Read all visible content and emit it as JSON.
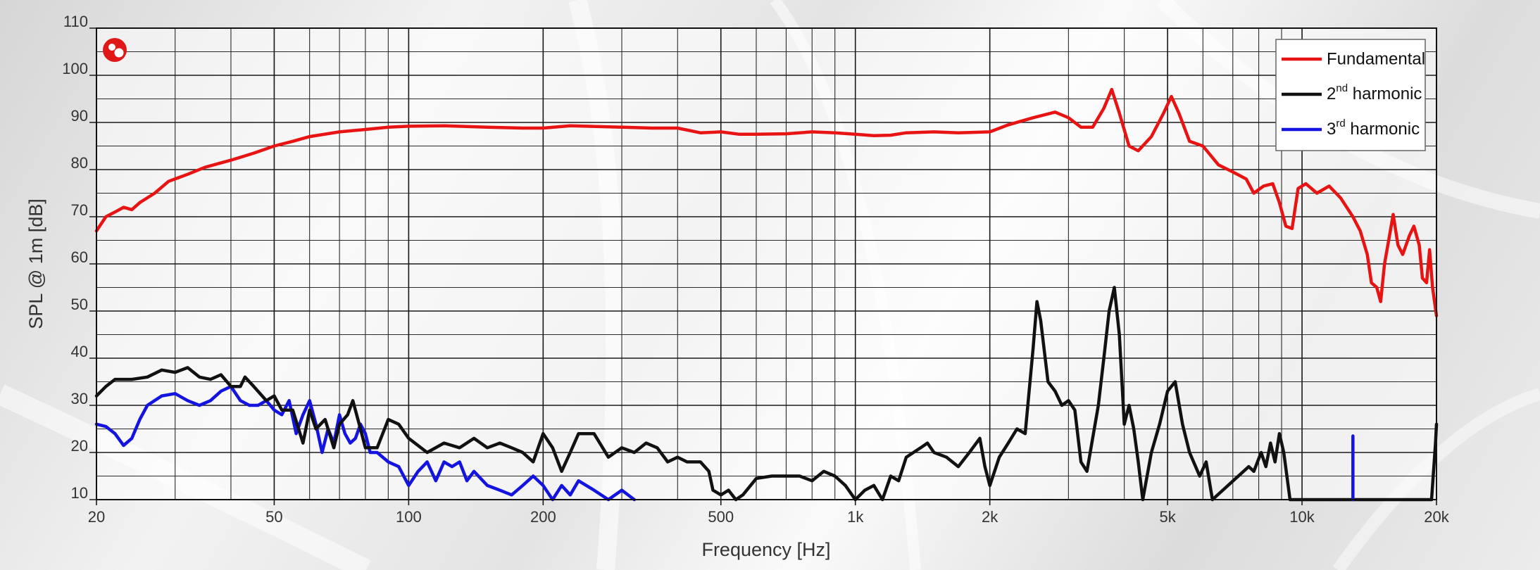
{
  "chart_data": {
    "type": "line",
    "title": "",
    "xlabel": "Frequency [Hz]",
    "ylabel": "SPL @ 1m [dB]",
    "xscale": "log",
    "xlim": [
      20,
      20000
    ],
    "ylim": [
      10,
      110
    ],
    "grid": true,
    "legend_position": "top-right",
    "x_ticks": [
      {
        "value": 20,
        "label": "20"
      },
      {
        "value": 50,
        "label": "50"
      },
      {
        "value": 100,
        "label": "100"
      },
      {
        "value": 200,
        "label": "200"
      },
      {
        "value": 500,
        "label": "500"
      },
      {
        "value": 1000,
        "label": "1k"
      },
      {
        "value": 2000,
        "label": "2k"
      },
      {
        "value": 5000,
        "label": "5k"
      },
      {
        "value": 10000,
        "label": "10k"
      },
      {
        "value": 20000,
        "label": "20k"
      }
    ],
    "y_ticks": [
      10,
      20,
      30,
      40,
      50,
      60,
      70,
      80,
      90,
      100,
      110
    ],
    "series": [
      {
        "key": "fundamental",
        "name": "Fundamental",
        "color": "#e81414",
        "points": [
          [
            20,
            67
          ],
          [
            21,
            70
          ],
          [
            22,
            71
          ],
          [
            23,
            72
          ],
          [
            24,
            71.5
          ],
          [
            25,
            73
          ],
          [
            27,
            75
          ],
          [
            29,
            77.5
          ],
          [
            32,
            79
          ],
          [
            35,
            80.5
          ],
          [
            40,
            82
          ],
          [
            45,
            83.5
          ],
          [
            50,
            85
          ],
          [
            55,
            86
          ],
          [
            60,
            87
          ],
          [
            70,
            88
          ],
          [
            80,
            88.5
          ],
          [
            90,
            89
          ],
          [
            100,
            89.2
          ],
          [
            120,
            89.3
          ],
          [
            150,
            89
          ],
          [
            180,
            88.8
          ],
          [
            200,
            88.8
          ],
          [
            230,
            89.3
          ],
          [
            250,
            89.2
          ],
          [
            300,
            89
          ],
          [
            350,
            88.8
          ],
          [
            400,
            88.8
          ],
          [
            450,
            87.8
          ],
          [
            500,
            88
          ],
          [
            550,
            87.5
          ],
          [
            600,
            87.5
          ],
          [
            700,
            87.6
          ],
          [
            800,
            88
          ],
          [
            900,
            87.8
          ],
          [
            1000,
            87.5
          ],
          [
            1100,
            87.2
          ],
          [
            1200,
            87.3
          ],
          [
            1300,
            87.8
          ],
          [
            1500,
            88
          ],
          [
            1700,
            87.8
          ],
          [
            2000,
            88
          ],
          [
            2200,
            89.5
          ],
          [
            2500,
            91
          ],
          [
            2800,
            92.2
          ],
          [
            3000,
            91
          ],
          [
            3200,
            89
          ],
          [
            3400,
            89
          ],
          [
            3600,
            93
          ],
          [
            3750,
            97
          ],
          [
            3900,
            92
          ],
          [
            4100,
            85
          ],
          [
            4300,
            84
          ],
          [
            4600,
            87
          ],
          [
            4900,
            92
          ],
          [
            5100,
            95.5
          ],
          [
            5300,
            92
          ],
          [
            5600,
            86
          ],
          [
            6000,
            85
          ],
          [
            6500,
            81
          ],
          [
            7000,
            79.5
          ],
          [
            7500,
            78
          ],
          [
            7800,
            75
          ],
          [
            8200,
            76.5
          ],
          [
            8600,
            77
          ],
          [
            8900,
            73
          ],
          [
            9200,
            68
          ],
          [
            9500,
            67.5
          ],
          [
            9800,
            76
          ],
          [
            10200,
            77
          ],
          [
            10800,
            75
          ],
          [
            11500,
            76.5
          ],
          [
            12200,
            74
          ],
          [
            13000,
            70
          ],
          [
            13500,
            67
          ],
          [
            14000,
            62
          ],
          [
            14300,
            56
          ],
          [
            14700,
            55
          ],
          [
            15000,
            52
          ],
          [
            15300,
            60
          ],
          [
            15700,
            66
          ],
          [
            16000,
            70.5
          ],
          [
            16400,
            64
          ],
          [
            16800,
            62
          ],
          [
            17400,
            66
          ],
          [
            17800,
            68
          ],
          [
            18300,
            64
          ],
          [
            18600,
            57
          ],
          [
            19000,
            56
          ],
          [
            19300,
            63
          ],
          [
            19600,
            55
          ],
          [
            20000,
            49
          ]
        ]
      },
      {
        "key": "harmonic2",
        "name": "2nd harmonic",
        "name_base": "2",
        "name_sup": "nd",
        "name_rest": " harmonic",
        "color": "#111111",
        "points": [
          [
            20,
            32
          ],
          [
            21,
            34
          ],
          [
            22,
            35.5
          ],
          [
            24,
            35.5
          ],
          [
            26,
            36
          ],
          [
            28,
            37.5
          ],
          [
            30,
            37
          ],
          [
            32,
            38
          ],
          [
            34,
            36
          ],
          [
            36,
            35.5
          ],
          [
            38,
            36.5
          ],
          [
            40,
            34
          ],
          [
            42,
            34
          ],
          [
            43,
            36
          ],
          [
            45,
            34
          ],
          [
            48,
            31
          ],
          [
            50,
            32
          ],
          [
            52,
            29
          ],
          [
            55,
            29
          ],
          [
            58,
            22
          ],
          [
            60,
            29
          ],
          [
            62,
            25
          ],
          [
            65,
            27
          ],
          [
            68,
            21
          ],
          [
            70,
            26
          ],
          [
            73,
            28
          ],
          [
            75,
            31
          ],
          [
            78,
            25
          ],
          [
            80,
            21
          ],
          [
            85,
            21
          ],
          [
            90,
            27
          ],
          [
            95,
            26
          ],
          [
            100,
            23
          ],
          [
            110,
            20
          ],
          [
            120,
            22
          ],
          [
            130,
            21
          ],
          [
            140,
            23
          ],
          [
            150,
            21
          ],
          [
            160,
            22
          ],
          [
            170,
            21
          ],
          [
            180,
            20
          ],
          [
            190,
            18
          ],
          [
            200,
            24
          ],
          [
            210,
            21
          ],
          [
            220,
            16
          ],
          [
            230,
            20
          ],
          [
            240,
            24
          ],
          [
            260,
            24
          ],
          [
            280,
            19
          ],
          [
            300,
            21
          ],
          [
            320,
            20
          ],
          [
            340,
            22
          ],
          [
            360,
            21
          ],
          [
            380,
            18
          ],
          [
            400,
            19
          ],
          [
            420,
            18
          ],
          [
            450,
            18
          ],
          [
            470,
            16
          ],
          [
            480,
            12
          ],
          [
            500,
            11
          ],
          [
            520,
            12
          ],
          [
            540,
            10
          ],
          [
            560,
            11
          ],
          [
            600,
            14.5
          ],
          [
            650,
            15
          ],
          [
            700,
            15
          ],
          [
            750,
            15
          ],
          [
            800,
            14
          ],
          [
            850,
            16
          ],
          [
            900,
            15
          ],
          [
            950,
            13
          ],
          [
            1000,
            10
          ],
          [
            1050,
            12
          ],
          [
            1100,
            13
          ],
          [
            1150,
            10
          ],
          [
            1200,
            15
          ],
          [
            1250,
            14
          ],
          [
            1300,
            19
          ],
          [
            1400,
            21
          ],
          [
            1450,
            22
          ],
          [
            1500,
            20
          ],
          [
            1600,
            19
          ],
          [
            1700,
            17
          ],
          [
            1800,
            20
          ],
          [
            1900,
            23
          ],
          [
            1950,
            17
          ],
          [
            2000,
            13
          ],
          [
            2100,
            19
          ],
          [
            2200,
            22
          ],
          [
            2300,
            25
          ],
          [
            2400,
            24
          ],
          [
            2500,
            42
          ],
          [
            2550,
            52
          ],
          [
            2600,
            48
          ],
          [
            2700,
            35
          ],
          [
            2800,
            33
          ],
          [
            2900,
            30
          ],
          [
            3000,
            31
          ],
          [
            3100,
            29
          ],
          [
            3200,
            18
          ],
          [
            3300,
            16
          ],
          [
            3500,
            30
          ],
          [
            3600,
            40
          ],
          [
            3700,
            50
          ],
          [
            3800,
            55
          ],
          [
            3900,
            45
          ],
          [
            4000,
            26
          ],
          [
            4100,
            30
          ],
          [
            4200,
            25
          ],
          [
            4300,
            18
          ],
          [
            4400,
            10
          ],
          [
            4600,
            20
          ],
          [
            4800,
            26
          ],
          [
            5000,
            33
          ],
          [
            5200,
            35
          ],
          [
            5400,
            26
          ],
          [
            5600,
            20
          ],
          [
            5900,
            15
          ],
          [
            6100,
            18
          ],
          [
            6300,
            10
          ],
          [
            7600,
            17
          ],
          [
            7800,
            16
          ],
          [
            8100,
            20
          ],
          [
            8300,
            17
          ],
          [
            8500,
            22
          ],
          [
            8700,
            18
          ],
          [
            8900,
            24
          ],
          [
            9100,
            20
          ],
          [
            9400,
            10
          ],
          [
            19500,
            10
          ],
          [
            19900,
            22
          ],
          [
            20000,
            26
          ]
        ]
      },
      {
        "key": "harmonic3",
        "name": "3rd harmonic",
        "name_base": "3",
        "name_sup": "rd",
        "name_rest": " harmonic",
        "color": "#1414e0",
        "points": [
          [
            20,
            26
          ],
          [
            21,
            25.5
          ],
          [
            22,
            24
          ],
          [
            23,
            21.5
          ],
          [
            24,
            23
          ],
          [
            25,
            27
          ],
          [
            26,
            30
          ],
          [
            28,
            32
          ],
          [
            30,
            32.5
          ],
          [
            32,
            31
          ],
          [
            34,
            30
          ],
          [
            36,
            31
          ],
          [
            38,
            33
          ],
          [
            40,
            34
          ],
          [
            42,
            31
          ],
          [
            44,
            30
          ],
          [
            46,
            30
          ],
          [
            48,
            31
          ],
          [
            50,
            29
          ],
          [
            52,
            28
          ],
          [
            54,
            31
          ],
          [
            56,
            24
          ],
          [
            58,
            28
          ],
          [
            60,
            31
          ],
          [
            62,
            26
          ],
          [
            64,
            20
          ],
          [
            66,
            25
          ],
          [
            68,
            22
          ],
          [
            70,
            28
          ],
          [
            72,
            24
          ],
          [
            74,
            22
          ],
          [
            76,
            23
          ],
          [
            78,
            26
          ],
          [
            80,
            24
          ],
          [
            82,
            20
          ],
          [
            85,
            20
          ],
          [
            90,
            18
          ],
          [
            95,
            17
          ],
          [
            100,
            13
          ],
          [
            105,
            16
          ],
          [
            110,
            18
          ],
          [
            115,
            14
          ],
          [
            120,
            18
          ],
          [
            125,
            17
          ],
          [
            130,
            18
          ],
          [
            135,
            14
          ],
          [
            140,
            16
          ],
          [
            150,
            13
          ],
          [
            160,
            12
          ],
          [
            170,
            11
          ],
          [
            180,
            13
          ],
          [
            190,
            15
          ],
          [
            200,
            13
          ],
          [
            210,
            10
          ],
          [
            220,
            13
          ],
          [
            230,
            11
          ],
          [
            240,
            14
          ],
          [
            260,
            12
          ],
          [
            280,
            10
          ],
          [
            300,
            12
          ],
          [
            320,
            10
          ]
        ]
      }
    ]
  }
}
